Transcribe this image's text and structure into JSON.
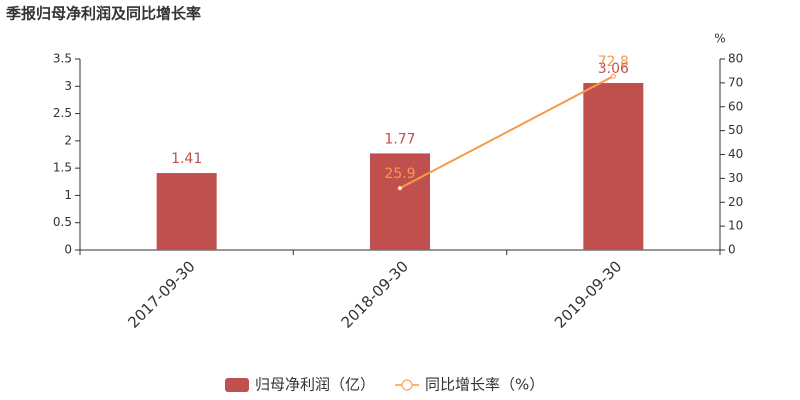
{
  "chart_data": {
    "type": "combo",
    "title": "季报归母净利润及同比增长率",
    "categories": [
      "2017-09-30",
      "2018-09-30",
      "2019-09-30"
    ],
    "series": [
      {
        "name": "归母净利润（亿）",
        "type": "bar",
        "color": "#c0504d",
        "values": [
          1.41,
          1.77,
          3.06
        ]
      },
      {
        "name": "同比增长率（%）",
        "type": "line",
        "axis": "y2",
        "color": "#f39c4a",
        "values": [
          null,
          25.9,
          72.8
        ]
      }
    ],
    "ylim": [
      0,
      3.5
    ],
    "yticks": [
      0,
      0.5,
      1,
      1.5,
      2,
      2.5,
      3,
      3.5
    ],
    "y2label": "%",
    "y2lim": [
      0,
      80
    ],
    "y2ticks": [
      0,
      10,
      20,
      30,
      40,
      50,
      60,
      70,
      80
    ],
    "legend": "bottom"
  }
}
